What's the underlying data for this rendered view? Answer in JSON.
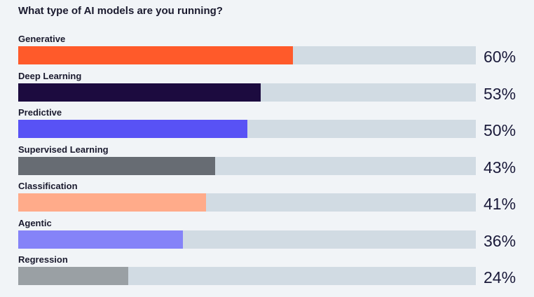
{
  "chart_data": {
    "type": "bar",
    "orientation": "horizontal",
    "title": "What type of AI models are you running?",
    "xlim": [
      0,
      100
    ],
    "categories": [
      "Generative",
      "Deep Learning",
      "Predictive",
      "Supervised Learning",
      "Classification",
      "Agentic",
      "Regression"
    ],
    "values": [
      60,
      53,
      50,
      43,
      41,
      36,
      24
    ],
    "value_labels": [
      "60%",
      "53%",
      "50%",
      "43%",
      "41%",
      "36%",
      "24%"
    ],
    "colors": [
      "#ff5a2a",
      "#1c0b3f",
      "#5852f5",
      "#676c73",
      "#ffab8a",
      "#8583f8",
      "#9aa0a4"
    ],
    "track_color": "#d1dbe3"
  }
}
